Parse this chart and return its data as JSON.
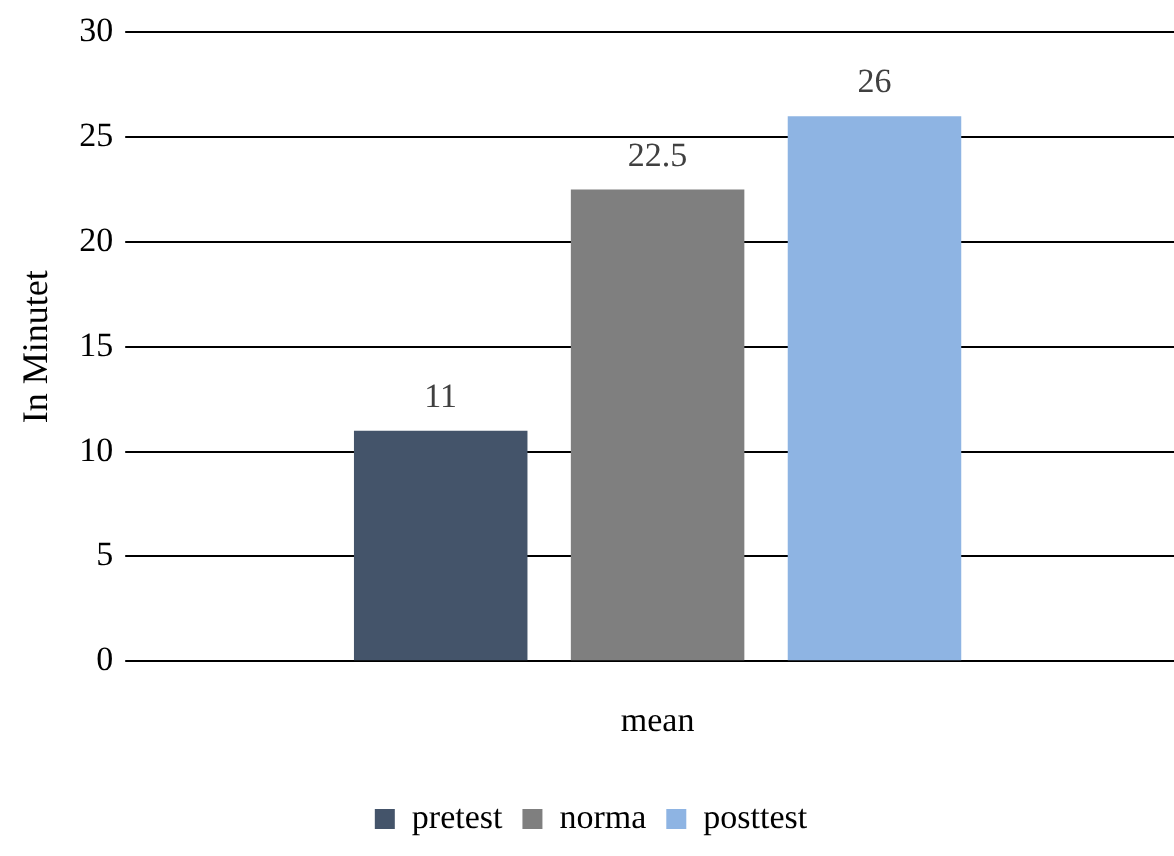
{
  "chart_data": {
    "type": "bar",
    "ylabel": "In Minutet",
    "categories": [
      "mean"
    ],
    "series": [
      {
        "name": "pretest",
        "color": "#44546a",
        "values": [
          11
        ]
      },
      {
        "name": "norma",
        "color": "#7f7f7f",
        "values": [
          22.5
        ]
      },
      {
        "name": "posttest",
        "color": "#8eb4e3",
        "values": [
          26
        ]
      }
    ],
    "ylim": [
      0,
      30
    ],
    "yticks": [
      0,
      5,
      10,
      15,
      20,
      25,
      30
    ],
    "grid": "y",
    "legend": "bottom",
    "data_labels": true
  }
}
